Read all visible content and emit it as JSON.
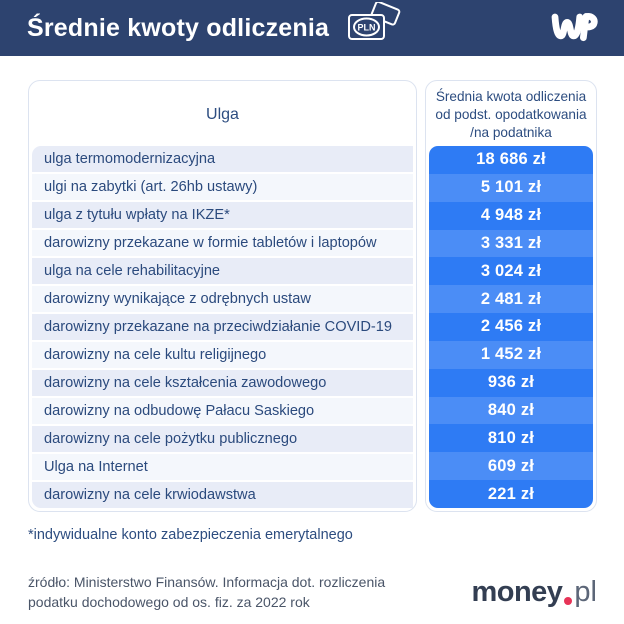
{
  "header": {
    "title": "Średnie kwoty odliczenia",
    "pln_icon_label": "PLN",
    "wp_logo_name": "wp-logo"
  },
  "table": {
    "left_column_header": "Ulga",
    "right_header_lines": [
      "Średnia kwota odliczenia",
      "od podst. opodatkowania",
      "/na podatnika"
    ],
    "rows": [
      {
        "label": "ulga termomodernizacyjna",
        "value": "18 686 zł"
      },
      {
        "label": "ulgi na zabytki (art. 26hb ustawy)",
        "value": "5 101 zł"
      },
      {
        "label": "ulga z tytułu wpłaty na IKZE*",
        "value": "4 948 zł"
      },
      {
        "label": "darowizny przekazane w formie tabletów i laptopów",
        "value": "3 331 zł"
      },
      {
        "label": "ulga na cele rehabilitacyjne",
        "value": "3 024 zł"
      },
      {
        "label": "darowizny wynikające z odrębnych ustaw",
        "value": "2 481 zł"
      },
      {
        "label": "darowizny przekazane na przeciwdziałanie COVID-19",
        "value": "2 456 zł"
      },
      {
        "label": "darowizny na cele kultu religijnego",
        "value": "1 452 zł"
      },
      {
        "label": "darowizny na cele kształcenia zawodowego",
        "value": "936 zł"
      },
      {
        "label": "darowizny na odbudowę Pałacu Saskiego",
        "value": "840 zł"
      },
      {
        "label": "darowizny na cele pożytku publicznego",
        "value": "810 zł"
      },
      {
        "label": "Ulga na Internet",
        "value": "609 zł"
      },
      {
        "label": "darowizny na cele krwiodawstwa",
        "value": "221 zł"
      }
    ]
  },
  "footnote": "*indywidualne konto zabezpieczenia emerytalnego",
  "source": {
    "line1": "źródło: Ministerstwo Finansów. Informacja dot. rozliczenia",
    "line2": "podatku dochodowego od os. fiz. za 2022 rok"
  },
  "footer_logo": {
    "money": "money",
    "pl": "pl"
  },
  "colors": {
    "topbar_bg": "#2d436f",
    "row_blue_dark": "#2e7bf4",
    "row_blue_light": "#4b8df6",
    "row_left_dark": "#e8ecf7",
    "row_left_light": "#f4f7fc",
    "text_navy": "#2b4a7d",
    "border": "#dce3f0",
    "money_dot_red": "#e73357"
  },
  "chart_data": {
    "type": "table",
    "title": "Średnie kwoty odliczenia",
    "columns": [
      "Ulga",
      "Średnia kwota odliczenia od podst. opodatkowania /na podatnika"
    ],
    "categories": [
      "ulga termomodernizacyjna",
      "ulgi na zabytki (art. 26hb ustawy)",
      "ulga z tytułu wpłaty na IKZE*",
      "darowizny przekazane w formie tabletów i laptopów",
      "ulga na cele rehabilitacyjne",
      "darowizny wynikające z odrębnych ustaw",
      "darowizny przekazane na przeciwdziałanie COVID-19",
      "darowizny na cele kultu religijnego",
      "darowizny na cele kształcenia zawodowego",
      "darowizny na odbudowę Pałacu Saskiego",
      "darowizny na cele pożytku publicznego",
      "Ulga na Internet",
      "darowizny na cele krwiodawstwa"
    ],
    "values": [
      18686,
      5101,
      4948,
      3331,
      3024,
      2481,
      2456,
      1452,
      936,
      840,
      810,
      609,
      221
    ],
    "unit": "zł",
    "source": "źródło: Ministerstwo Finansów. Informacja dot. rozliczenia podatku dochodowego od os. fiz. za 2022 rok"
  }
}
